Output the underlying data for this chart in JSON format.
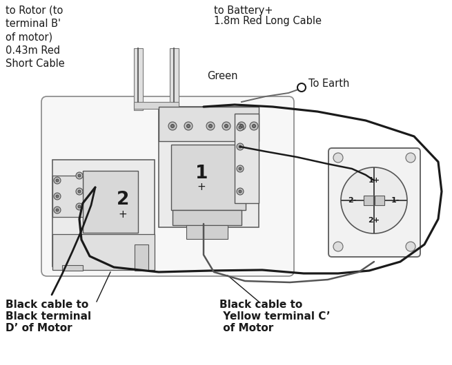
{
  "bg_color": "#ffffff",
  "lc": "#1a1a1a",
  "gray1": "#f0f0f0",
  "gray2": "#e0e0e0",
  "gray3": "#cccccc",
  "gray4": "#aaaaaa",
  "gray5": "#888888",
  "figsize": [
    6.55,
    5.3
  ],
  "dpi": 100,
  "top_left_text": "to Rotor (to\nterminal B'\nof motor)\n0.43m Red\nShort Cable",
  "top_center_l1": "to Battery+",
  "top_center_l2": "1.8m Red Long Cable",
  "green_text": "Green",
  "earth_text": "To Earth",
  "bot_left_l1": "Black cable to",
  "bot_left_l2": "Black terminal",
  "bot_left_l3": "D’ of Motor",
  "bot_ctr_l1": "Black cable to",
  "bot_ctr_l2": " Yellow terminal C’",
  "bot_ctr_l3": " of Motor"
}
